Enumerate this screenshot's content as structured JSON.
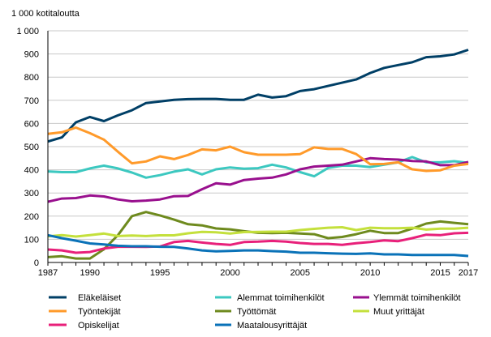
{
  "chart_data": {
    "type": "line",
    "ylabel": "1 000 kotitaloutta",
    "ylim": [
      0,
      1000
    ],
    "yticks": [
      "0",
      "100",
      "200",
      "300",
      "400",
      "500",
      "600",
      "700",
      "800",
      "900",
      "1 000"
    ],
    "yticks_values": [
      0,
      100,
      200,
      300,
      400,
      500,
      600,
      700,
      800,
      900,
      1000
    ],
    "xticks": [
      "1987",
      "1990",
      "1995",
      "2000",
      "2005",
      "2010",
      "2015",
      "2017"
    ],
    "xticks_values": [
      1987,
      1990,
      1995,
      2000,
      2005,
      2010,
      2015,
      2017
    ],
    "grid": "horizontal",
    "legend": "bottom",
    "x": [
      1987,
      1988,
      1989,
      1990,
      1991,
      1992,
      1993,
      1994,
      1995,
      1996,
      1997,
      1998,
      1999,
      2000,
      2001,
      2002,
      2003,
      2004,
      2005,
      2006,
      2007,
      2008,
      2009,
      2010,
      2011,
      2012,
      2013,
      2014,
      2015,
      2016,
      2017
    ],
    "series": [
      {
        "name": "Eläkeläiset",
        "color": "#003f66",
        "values": [
          522,
          540,
          605,
          628,
          610,
          635,
          657,
          688,
          695,
          702,
          705,
          706,
          706,
          702,
          702,
          724,
          712,
          718,
          740,
          748,
          762,
          776,
          790,
          818,
          840,
          852,
          864,
          886,
          890,
          898,
          918
        ]
      },
      {
        "name": "Alemmat toimihenkilöt",
        "color": "#3cc8c0",
        "values": [
          393,
          390,
          390,
          406,
          418,
          406,
          388,
          366,
          377,
          392,
          402,
          380,
          402,
          410,
          405,
          407,
          422,
          410,
          390,
          372,
          408,
          418,
          418,
          412,
          422,
          432,
          455,
          432,
          432,
          437,
          430
        ]
      },
      {
        "name": "Ylemmät toimihenkilöt",
        "color": "#99108e",
        "values": [
          262,
          276,
          278,
          289,
          285,
          272,
          264,
          267,
          272,
          286,
          287,
          316,
          342,
          336,
          356,
          362,
          366,
          380,
          402,
          414,
          418,
          422,
          436,
          450,
          446,
          444,
          438,
          436,
          420,
          420,
          434
        ]
      },
      {
        "name": "Työntekijät",
        "color": "#ff9a2a",
        "values": [
          555,
          562,
          582,
          558,
          530,
          478,
          428,
          436,
          458,
          446,
          464,
          488,
          484,
          500,
          476,
          465,
          465,
          465,
          468,
          497,
          490,
          490,
          468,
          424,
          425,
          432,
          402,
          395,
          398,
          418,
          425
        ]
      },
      {
        "name": "Työttömät",
        "color": "#6e8a1e",
        "values": [
          23,
          27,
          17,
          17,
          57,
          118,
          200,
          218,
          203,
          185,
          165,
          160,
          147,
          143,
          135,
          128,
          127,
          128,
          125,
          122,
          105,
          110,
          122,
          137,
          127,
          127,
          146,
          168,
          177,
          171,
          165
        ]
      },
      {
        "name": "Muut yrittäjät",
        "color": "#c4e03c",
        "values": [
          113,
          118,
          112,
          118,
          125,
          114,
          116,
          114,
          117,
          117,
          126,
          132,
          130,
          125,
          131,
          132,
          133,
          133,
          140,
          145,
          150,
          152,
          140,
          150,
          148,
          148,
          150,
          142,
          146,
          146,
          150
        ]
      },
      {
        "name": "Opiskelijat",
        "color": "#e8207a",
        "values": [
          56,
          52,
          42,
          45,
          60,
          68,
          68,
          67,
          69,
          88,
          93,
          86,
          80,
          76,
          88,
          90,
          93,
          90,
          84,
          80,
          80,
          76,
          83,
          88,
          95,
          92,
          105,
          120,
          118,
          126,
          128
        ]
      },
      {
        "name": "Maatalousyrittäjät",
        "color": "#0a72b8",
        "values": [
          118,
          105,
          94,
          82,
          78,
          72,
          70,
          70,
          68,
          67,
          60,
          52,
          48,
          50,
          52,
          52,
          49,
          47,
          42,
          42,
          40,
          38,
          37,
          39,
          35,
          35,
          32,
          32,
          32,
          32,
          28
        ]
      }
    ]
  }
}
